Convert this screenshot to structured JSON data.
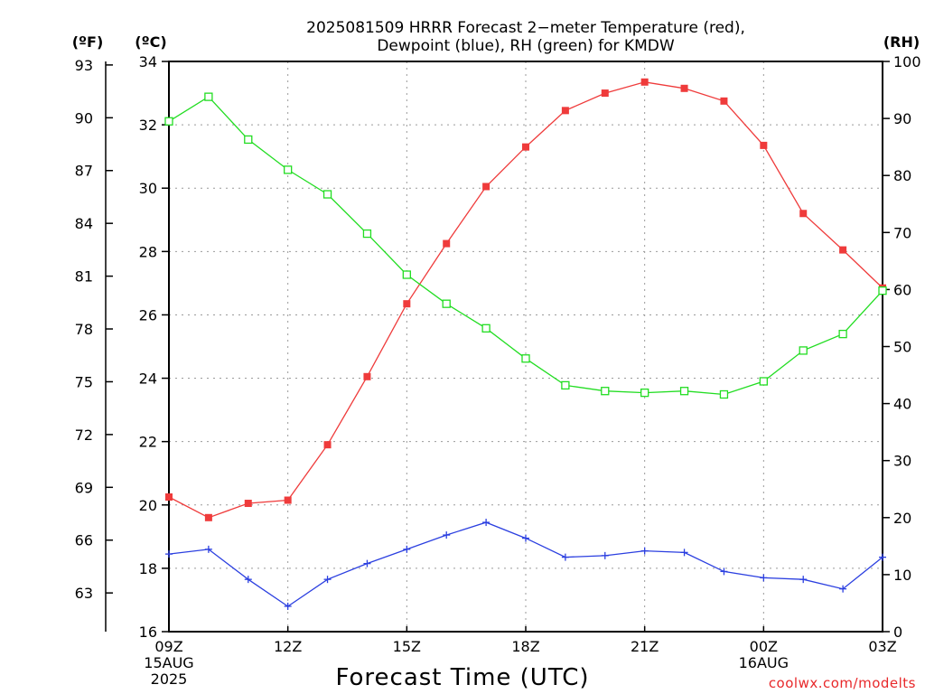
{
  "title_line1": "2025081509 HRRR Forecast 2−meter Temperature (red),",
  "title_line2": "Dewpoint (blue), RH (green) for KMDW",
  "unit_f": "(ºF)",
  "unit_c": "(ºC)",
  "unit_rh": "(RH)",
  "credit": "coolwx.com/modelts",
  "chart_data": {
    "type": "line",
    "xlabel": "Forecast Time (UTC)",
    "x_hours": [
      0,
      1,
      2,
      3,
      4,
      5,
      6,
      7,
      8,
      9,
      10,
      11,
      12,
      13,
      14,
      15,
      16,
      17,
      18
    ],
    "xlim": [
      0,
      18
    ],
    "x_ticks": [
      {
        "hour": 0,
        "lines": [
          "09Z",
          "15AUG",
          "2025"
        ]
      },
      {
        "hour": 3,
        "lines": [
          "12Z"
        ]
      },
      {
        "hour": 6,
        "lines": [
          "15Z"
        ]
      },
      {
        "hour": 9,
        "lines": [
          "18Z"
        ]
      },
      {
        "hour": 12,
        "lines": [
          "21Z"
        ]
      },
      {
        "hour": 15,
        "lines": [
          "00Z",
          "16AUG"
        ]
      },
      {
        "hour": 18,
        "lines": [
          "03Z"
        ]
      }
    ],
    "y_celsius": {
      "lim": [
        16,
        34
      ],
      "ticks": [
        16,
        18,
        20,
        22,
        24,
        26,
        28,
        30,
        32,
        34
      ]
    },
    "y_fahrenheit": {
      "ticks": [
        63,
        66,
        69,
        72,
        75,
        78,
        81,
        84,
        87,
        90,
        93
      ]
    },
    "y_rh": {
      "lim": [
        0,
        100
      ],
      "ticks": [
        0,
        10,
        20,
        30,
        40,
        50,
        60,
        70,
        80,
        90,
        100
      ]
    },
    "grid": true,
    "series": [
      {
        "name": "Temperature (red)",
        "axis": "celsius",
        "color": "#ef3b3b",
        "marker": "filled-square",
        "values": [
          20.25,
          19.6,
          20.05,
          20.15,
          21.9,
          24.05,
          26.35,
          28.25,
          30.05,
          31.3,
          32.45,
          33.0,
          33.35,
          33.15,
          32.75,
          31.35,
          29.2,
          28.05,
          26.85
        ]
      },
      {
        "name": "Dewpoint (blue)",
        "axis": "celsius",
        "color": "#2b3fe0",
        "marker": "plus",
        "values": [
          18.45,
          18.6,
          17.65,
          16.8,
          17.65,
          18.15,
          18.6,
          19.05,
          19.45,
          18.95,
          18.35,
          18.4,
          18.55,
          18.5,
          17.9,
          17.7,
          17.65,
          17.35,
          18.35
        ]
      },
      {
        "name": "RH (green)",
        "axis": "rh",
        "color": "#22dd22",
        "marker": "open-square",
        "values": [
          89.5,
          93.8,
          86.3,
          81.0,
          76.7,
          69.8,
          62.6,
          57.5,
          53.2,
          47.9,
          43.2,
          42.2,
          41.9,
          42.2,
          41.6,
          43.9,
          49.3,
          52.2,
          59.8
        ]
      }
    ]
  }
}
